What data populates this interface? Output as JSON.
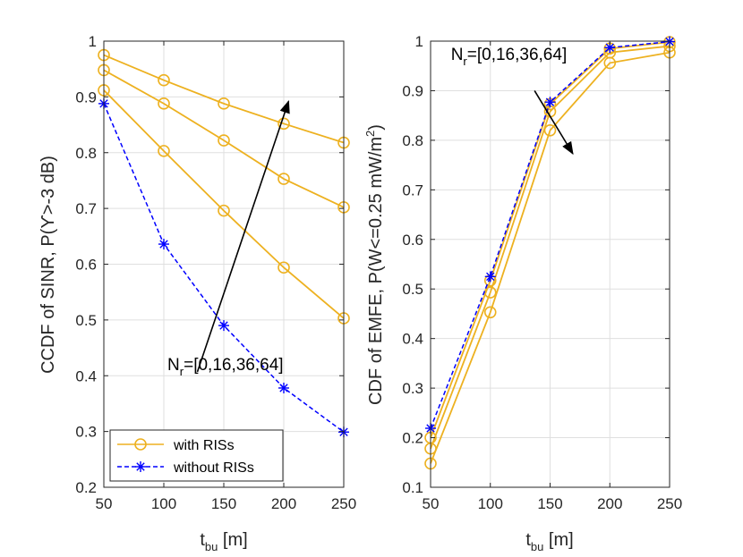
{
  "colors": {
    "with": "#EDB120",
    "without": "#0000FF",
    "grid": "#DFDFDF",
    "axis": "#262626"
  },
  "chart_data": [
    {
      "type": "line",
      "xlabel_main": "t",
      "xlabel_sub": "bu",
      "xlabel_unit": " [m]",
      "ylabel": "CCDF of SINR, P(ϒ>-3 dB)",
      "x": [
        50,
        100,
        150,
        200,
        250
      ],
      "xlim": [
        50,
        250
      ],
      "ylim": [
        0.2,
        1
      ],
      "xticks": [
        50,
        100,
        150,
        200,
        250
      ],
      "xtick_labels": [
        "50",
        "100",
        "150",
        "200",
        "250"
      ],
      "yticks": [
        0.2,
        0.3,
        0.4,
        0.5,
        0.6,
        0.7,
        0.8,
        0.9,
        1
      ],
      "ytick_labels": [
        "0.2",
        "0.3",
        "0.4",
        "0.5",
        "0.6",
        "0.7",
        "0.8",
        "0.9",
        "1"
      ],
      "grid": true,
      "legend": {
        "placement": "bottom-left",
        "entries": [
          "with RISs",
          "without RISs"
        ]
      },
      "series": [
        {
          "name": "with RISs",
          "style": "with",
          "values": [
            0.975,
            0.93,
            0.888,
            0.852,
            0.818
          ]
        },
        {
          "name": "with RISs",
          "style": "with",
          "values": [
            0.948,
            0.888,
            0.822,
            0.753,
            0.702
          ]
        },
        {
          "name": "with RISs",
          "style": "with",
          "values": [
            0.912,
            0.803,
            0.696,
            0.594,
            0.503
          ]
        },
        {
          "name": "without RISs",
          "style": "without",
          "values": [
            0.888,
            0.636,
            0.49,
            0.378,
            0.299
          ]
        }
      ],
      "annotation": {
        "text_main": "N",
        "text_sub": "r",
        "text_rest": "=[0,16,36,64]",
        "arrow_from": [
          128,
          0.407
        ],
        "arrow_to": [
          204,
          0.892
        ],
        "text_anchor": [
          103,
          0.41
        ]
      }
    },
    {
      "type": "line",
      "xlabel_main": "t",
      "xlabel_sub": "bu",
      "xlabel_unit": " [m]",
      "ylabel_main": "CDF of EMFE, P(W<=0.25 mW/m",
      "ylabel_sup": "2",
      "ylabel_end": ")",
      "x": [
        50,
        100,
        150,
        200,
        250
      ],
      "xlim": [
        50,
        250
      ],
      "ylim": [
        0.1,
        1
      ],
      "xticks": [
        50,
        100,
        150,
        200,
        250
      ],
      "xtick_labels": [
        "50",
        "100",
        "150",
        "200",
        "250"
      ],
      "yticks": [
        0.1,
        0.2,
        0.3,
        0.4,
        0.5,
        0.6,
        0.7,
        0.8,
        0.9,
        1
      ],
      "ytick_labels": [
        "0.1",
        "0.2",
        "0.3",
        "0.4",
        "0.5",
        "0.6",
        "0.7",
        "0.8",
        "0.9",
        "1"
      ],
      "grid": true,
      "series": [
        {
          "name": "with RISs",
          "style": "with",
          "values": [
            0.148,
            0.453,
            0.82,
            0.956,
            0.977
          ]
        },
        {
          "name": "with RISs",
          "style": "with",
          "values": [
            0.178,
            0.493,
            0.858,
            0.977,
            0.99
          ]
        },
        {
          "name": "with RISs",
          "style": "with",
          "values": [
            0.2,
            0.517,
            0.873,
            0.985,
            0.998
          ]
        },
        {
          "name": "without RISs",
          "style": "without",
          "values": [
            0.219,
            0.525,
            0.877,
            0.987,
            0.999
          ]
        }
      ],
      "annotation": {
        "text_main": "N",
        "text_sub": "r",
        "text_rest": "=[0,16,36,64]",
        "arrow_from": [
          137,
          0.9
        ],
        "arrow_to": [
          169,
          0.773
        ],
        "text_anchor": [
          67,
          0.962
        ]
      }
    }
  ]
}
